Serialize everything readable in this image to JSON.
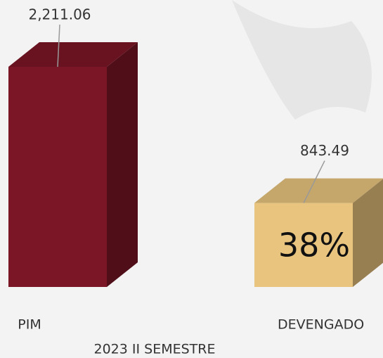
{
  "chart_data": {
    "type": "bar3d",
    "categories": [
      "PIM",
      "DEVENGADO"
    ],
    "values": [
      2211.06,
      843.49
    ],
    "value_labels": [
      "2,211.06",
      "843.49"
    ],
    "colors": [
      "#7b1626",
      "#e8c47e"
    ],
    "xlabel": "2023 II SEMESTRE",
    "annotation": "38%"
  }
}
